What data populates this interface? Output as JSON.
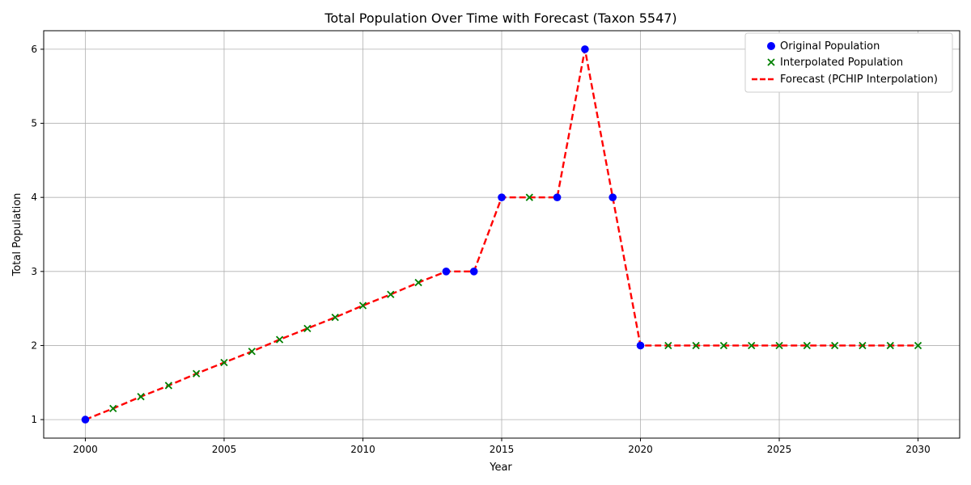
{
  "chart_data": {
    "type": "line",
    "title": "Total Population Over Time with Forecast (Taxon 5547)",
    "xlabel": "Year",
    "ylabel": "Total Population",
    "xlim": [
      1998.5,
      2031.5
    ],
    "ylim": [
      0.75,
      6.25
    ],
    "xticks": [
      2000,
      2005,
      2010,
      2015,
      2020,
      2025,
      2030
    ],
    "yticks": [
      1,
      2,
      3,
      4,
      5,
      6
    ],
    "grid": true,
    "legend_position": "top-right",
    "series": [
      {
        "name": "Original Population",
        "kind": "scatter",
        "marker": "circle",
        "color": "#0000ff",
        "x": [
          2000,
          2013,
          2014,
          2015,
          2017,
          2018,
          2019,
          2020
        ],
        "y": [
          1,
          3,
          3,
          4,
          4,
          6,
          4,
          2
        ]
      },
      {
        "name": "Interpolated Population",
        "kind": "scatter",
        "marker": "x",
        "color": "#008000",
        "x": [
          2001,
          2002,
          2003,
          2004,
          2005,
          2006,
          2007,
          2008,
          2009,
          2010,
          2011,
          2012,
          2016,
          2021,
          2022,
          2023,
          2024,
          2025,
          2026,
          2027,
          2028,
          2029,
          2030
        ],
        "y": [
          1.15,
          1.31,
          1.46,
          1.62,
          1.77,
          1.92,
          2.08,
          2.23,
          2.38,
          2.54,
          2.69,
          2.85,
          4,
          2,
          2,
          2,
          2,
          2,
          2,
          2,
          2,
          2,
          2
        ]
      },
      {
        "name": "Forecast (PCHIP Interpolation)",
        "kind": "line",
        "style": "dashed",
        "color": "#ff0000",
        "x": [
          2000,
          2001,
          2002,
          2003,
          2004,
          2005,
          2006,
          2007,
          2008,
          2009,
          2010,
          2011,
          2012,
          2013,
          2014,
          2015,
          2016,
          2017,
          2018,
          2019,
          2020,
          2021,
          2022,
          2023,
          2024,
          2025,
          2026,
          2027,
          2028,
          2029,
          2030
        ],
        "y": [
          1,
          1.15,
          1.31,
          1.46,
          1.62,
          1.77,
          1.92,
          2.08,
          2.23,
          2.38,
          2.54,
          2.69,
          2.85,
          3,
          3,
          4,
          4,
          4,
          6,
          4,
          2,
          2,
          2,
          2,
          2,
          2,
          2,
          2,
          2,
          2,
          2
        ]
      }
    ]
  }
}
